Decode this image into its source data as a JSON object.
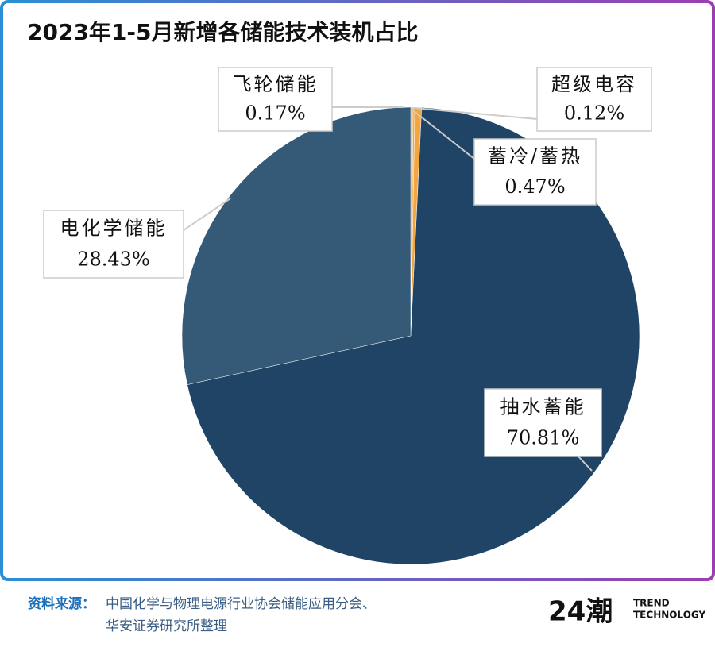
{
  "chart_data": {
    "type": "pie",
    "title": "2023年1-5月新增各储能技术装机占比",
    "categories": [
      "飞轮储能",
      "超级电容",
      "蓄冷/蓄热",
      "抽水蓄能",
      "电化学储能"
    ],
    "values": [
      0.17,
      0.12,
      0.47,
      70.81,
      28.43
    ],
    "value_labels": [
      "0.17%",
      "0.12%",
      "0.47%",
      "70.81%",
      "28.43%"
    ],
    "colors": [
      "#f2a541",
      "#f2a541",
      "#f2a541",
      "#1f4466",
      "#345a77"
    ]
  },
  "source": {
    "label": "资料来源：",
    "lines": [
      "中国化学与物理电源行业协会储能应用分会、",
      "华安证券研究所整理"
    ]
  },
  "logo": {
    "mark": "24潮",
    "lines": [
      "TREND",
      "TECHNOLOGY"
    ]
  }
}
